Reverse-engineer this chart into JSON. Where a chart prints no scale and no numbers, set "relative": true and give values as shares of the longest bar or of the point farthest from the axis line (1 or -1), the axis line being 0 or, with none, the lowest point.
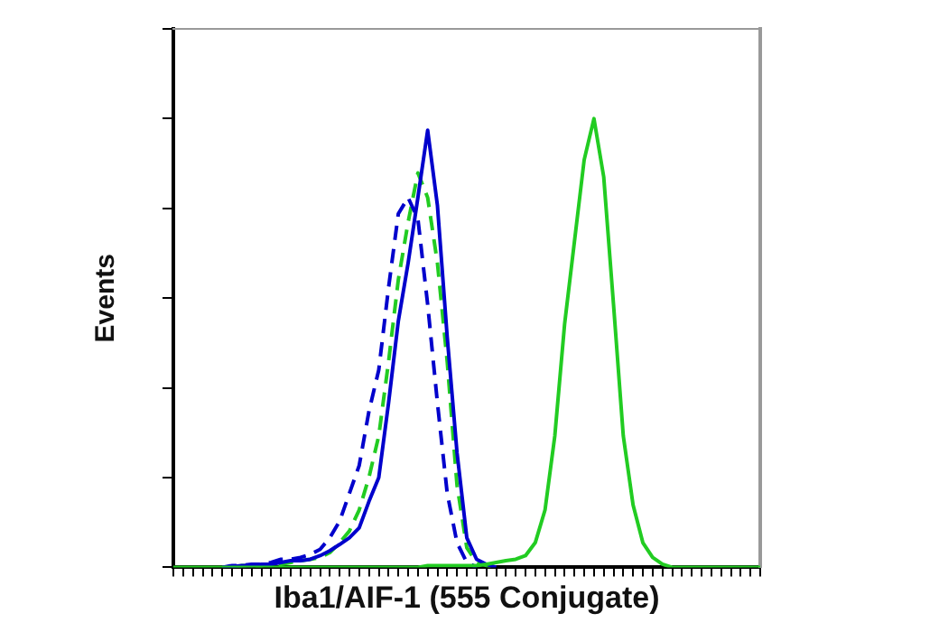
{
  "chart_data": {
    "type": "line",
    "relative": true,
    "xlabel": "Iba1/AIF-1 (555 Conjugate)",
    "ylabel": "Events",
    "legend": false,
    "grid": false,
    "marker": "none",
    "categories": [
      null,
      null,
      null,
      null,
      null,
      null,
      null,
      null,
      null,
      null,
      null,
      null,
      null,
      null,
      null,
      null,
      null,
      null,
      null,
      null,
      null,
      null,
      null,
      null,
      null,
      null,
      null,
      null,
      null,
      null,
      null,
      null,
      null,
      null,
      null,
      null,
      null,
      null,
      null,
      null,
      null,
      null,
      null,
      null,
      null,
      null,
      null,
      null,
      null,
      null,
      null,
      null,
      null,
      null,
      null,
      null,
      null,
      null,
      null,
      null,
      null
    ],
    "series": [
      {
        "color": "#22cc22",
        "line_style": "solid",
        "values": [
          0,
          0,
          0,
          0,
          0,
          0,
          0,
          0,
          0,
          0,
          0,
          0,
          0,
          0,
          0,
          0,
          0,
          0,
          0,
          0,
          0,
          0,
          0,
          0,
          0,
          0,
          0.004,
          0.004,
          0.004,
          0.004,
          0.004,
          0.004,
          0.007,
          0.011,
          0.015,
          0.018,
          0.026,
          0.055,
          0.128,
          0.293,
          0.542,
          0.725,
          0.908,
          1,
          0.87,
          0.586,
          0.293,
          0.139,
          0.055,
          0.022,
          0.007,
          0,
          0,
          0,
          0,
          0,
          0,
          0,
          0,
          0,
          0
        ]
      },
      {
        "color": "#0000cc",
        "line_style": "dashed",
        "values": [
          null,
          null,
          null,
          null,
          null,
          0,
          0.004,
          0.004,
          0.007,
          0.007,
          0.011,
          0.018,
          0.018,
          0.022,
          0.029,
          0.04,
          0.066,
          0.103,
          0.165,
          0.227,
          0.348,
          0.44,
          0.623,
          0.788,
          0.824,
          0.777,
          0.586,
          0.366,
          0.165,
          0.055,
          0.011,
          0,
          null,
          null,
          null,
          null,
          null,
          null,
          null,
          null,
          null,
          null,
          null,
          null,
          null,
          null,
          null,
          null,
          null,
          null,
          null,
          null,
          null,
          null,
          null,
          null,
          null,
          null,
          null,
          null,
          null
        ]
      },
      {
        "color": "#0000cc",
        "line_style": "solid",
        "values": [
          null,
          null,
          null,
          null,
          null,
          0,
          0.002,
          0.004,
          0.004,
          0.007,
          0.007,
          0.011,
          0.015,
          0.015,
          0.018,
          0.026,
          0.037,
          0.051,
          0.066,
          0.088,
          0.147,
          0.2,
          0.366,
          0.549,
          0.678,
          0.824,
          0.974,
          0.806,
          0.513,
          0.256,
          0.066,
          0.018,
          0.007,
          0,
          null,
          null,
          null,
          null,
          null,
          null,
          null,
          null,
          null,
          null,
          null,
          null,
          null,
          null,
          null,
          null,
          null,
          null,
          null,
          null,
          null,
          null,
          null,
          null,
          null,
          null,
          null
        ]
      },
      {
        "color": "#22cc22",
        "line_style": "dashed",
        "values": [
          null,
          null,
          null,
          null,
          null,
          null,
          0,
          0.004,
          0.004,
          0.004,
          0.007,
          0.007,
          0.011,
          0.015,
          0.018,
          0.022,
          0.033,
          0.055,
          0.081,
          0.128,
          0.201,
          0.293,
          0.458,
          0.641,
          0.769,
          0.879,
          0.824,
          0.678,
          0.458,
          0.183,
          0.044,
          0.011,
          0.004,
          0,
          null,
          null,
          null,
          null,
          null,
          null,
          null,
          null,
          null,
          null,
          null,
          null,
          null,
          null,
          null,
          null,
          null,
          null,
          null,
          null,
          null,
          null,
          null,
          null,
          null,
          null,
          null
        ]
      }
    ]
  }
}
